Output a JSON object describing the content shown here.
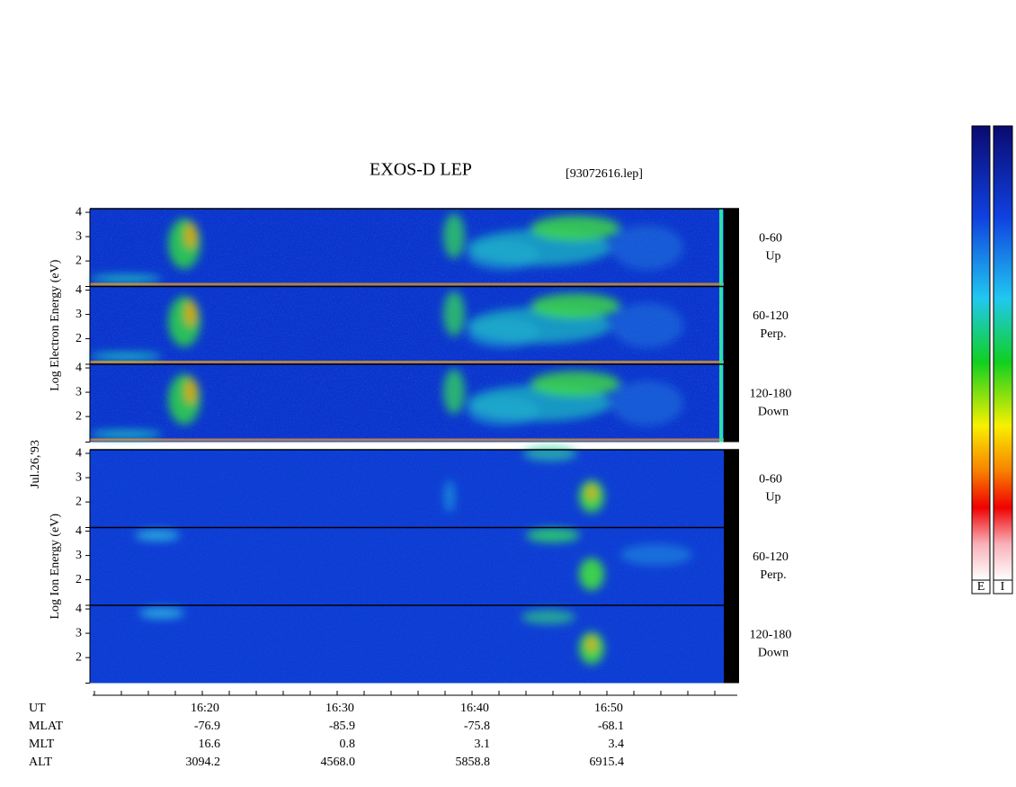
{
  "chart_data": {
    "type": "spectrogram",
    "title": "EXOS-D LEP",
    "file_label": "[93072616.lep]",
    "date_label": "Jul.26,'93",
    "groups": [
      {
        "ylabel": "Log Electron Energy (eV)",
        "panels": [
          {
            "ylim": [
              0.95,
              4.15
            ],
            "yticks": [
              2,
              3,
              4
            ],
            "angle": "0-60",
            "direction": "Up"
          },
          {
            "ylim": [
              0.95,
              4.15
            ],
            "yticks": [
              2,
              3,
              4
            ],
            "angle": "60-120",
            "direction": "Perp."
          },
          {
            "ylim": [
              0.95,
              4.15
            ],
            "yticks": [
              2,
              3,
              4
            ],
            "angle": "120-180",
            "direction": "Down"
          }
        ]
      },
      {
        "ylabel": "Log Ion Energy (eV)",
        "panels": [
          {
            "ylim": [
              0.95,
              4.15
            ],
            "yticks": [
              2,
              3,
              4
            ],
            "angle": "0-60",
            "direction": "Up"
          },
          {
            "ylim": [
              0.95,
              4.15
            ],
            "yticks": [
              2,
              3,
              4
            ],
            "angle": "60-120",
            "direction": "Perp."
          },
          {
            "ylim": [
              0.95,
              4.15
            ],
            "yticks": [
              2,
              3,
              4
            ],
            "angle": "120-180",
            "direction": "Down"
          }
        ]
      }
    ],
    "ephemeris": [
      {
        "name": "UT",
        "values": [
          "16:20",
          "16:30",
          "16:40",
          "16:50"
        ]
      },
      {
        "name": "MLAT",
        "values": [
          "-76.9",
          "-85.9",
          "-75.8",
          "-68.1"
        ]
      },
      {
        "name": "MLT",
        "values": [
          "16.6",
          "0.8",
          "3.1",
          "3.4"
        ]
      },
      {
        "name": "ALT",
        "values": [
          "3094.2",
          "4568.0",
          "5858.8",
          "6915.4"
        ]
      }
    ],
    "colorbar_labels": [
      "E",
      "I"
    ]
  }
}
